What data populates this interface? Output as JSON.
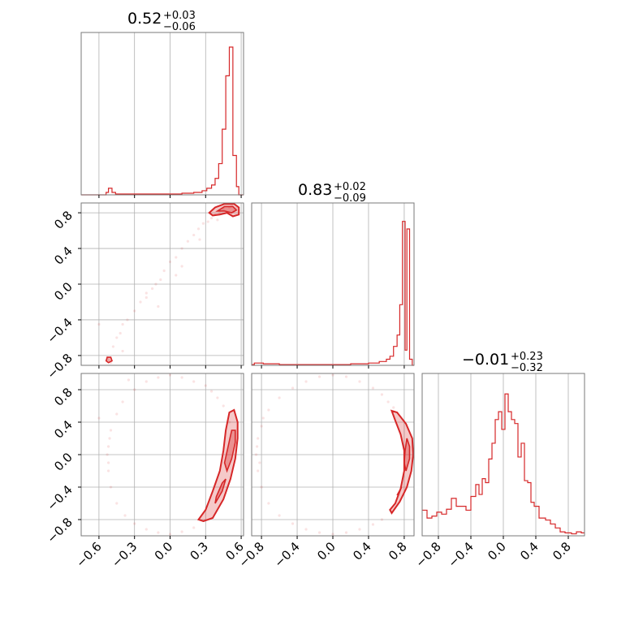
{
  "colors": {
    "accent": "#d62728",
    "frame": "#7a7a7a",
    "grid": "#b0b0b0"
  },
  "chart_data": {
    "type": "corner",
    "grid": true,
    "parameters": [
      {
        "title_main": "0.52",
        "title_sup": "+0.03",
        "title_sub": "−0.06",
        "range": [
          -0.75,
          0.62
        ],
        "ticks": [
          -0.6,
          -0.3,
          0.0,
          0.3,
          0.6
        ],
        "tick_labels": [
          "−0.6",
          "−0.3",
          "0.0",
          "0.3",
          "0.6"
        ]
      },
      {
        "title_main": "0.83",
        "title_sup": "+0.02",
        "title_sub": "−0.09",
        "range": [
          -0.91,
          0.91
        ],
        "ticks": [
          -0.8,
          -0.4,
          0.0,
          0.4,
          0.8
        ],
        "tick_labels": [
          "−0.8",
          "−0.4",
          "0.0",
          "0.4",
          "0.8"
        ]
      },
      {
        "title_main": "−0.01",
        "title_sup": "+0.23",
        "title_sub": "−0.32",
        "range": [
          -1.0,
          1.0
        ],
        "ticks": [
          -0.8,
          -0.4,
          0.0,
          0.4,
          0.8
        ],
        "tick_labels": [
          "−0.8",
          "−0.4",
          "0.0",
          "0.4",
          "0.8"
        ]
      }
    ],
    "histograms": [
      {
        "param": 0,
        "bins": [
          [
            -0.75,
            -0.54,
            0
          ],
          [
            -0.54,
            -0.52,
            3
          ],
          [
            -0.52,
            -0.49,
            8
          ],
          [
            -0.49,
            -0.46,
            3
          ],
          [
            -0.46,
            -0.3,
            1
          ],
          [
            -0.3,
            -0.1,
            1
          ],
          [
            -0.1,
            0.0,
            1
          ],
          [
            0.0,
            0.1,
            1
          ],
          [
            0.1,
            0.2,
            2
          ],
          [
            0.2,
            0.27,
            3
          ],
          [
            0.27,
            0.31,
            5
          ],
          [
            0.31,
            0.35,
            8
          ],
          [
            0.35,
            0.38,
            12
          ],
          [
            0.38,
            0.41,
            20
          ],
          [
            0.41,
            0.44,
            38
          ],
          [
            0.44,
            0.47,
            80
          ],
          [
            0.47,
            0.5,
            145
          ],
          [
            0.5,
            0.53,
            180
          ],
          [
            0.53,
            0.56,
            48
          ],
          [
            0.56,
            0.58,
            10
          ],
          [
            0.58,
            0.62,
            0
          ]
        ],
        "max": 180
      },
      {
        "param": 1,
        "bins": [
          [
            -0.91,
            -0.88,
            1
          ],
          [
            -0.88,
            -0.78,
            3
          ],
          [
            -0.78,
            -0.6,
            2
          ],
          [
            -0.6,
            -0.4,
            1
          ],
          [
            -0.4,
            -0.2,
            1
          ],
          [
            -0.2,
            0.0,
            1
          ],
          [
            0.0,
            0.2,
            1
          ],
          [
            0.2,
            0.4,
            2
          ],
          [
            0.4,
            0.52,
            3
          ],
          [
            0.52,
            0.6,
            5
          ],
          [
            0.6,
            0.64,
            8
          ],
          [
            0.64,
            0.68,
            12
          ],
          [
            0.68,
            0.72,
            25
          ],
          [
            0.72,
            0.75,
            40
          ],
          [
            0.75,
            0.78,
            80
          ],
          [
            0.78,
            0.81,
            190
          ],
          [
            0.81,
            0.83,
            20
          ],
          [
            0.83,
            0.86,
            180
          ],
          [
            0.86,
            0.89,
            8
          ],
          [
            0.89,
            0.91,
            0
          ]
        ],
        "max": 195
      },
      {
        "param": 2,
        "bins": [
          [
            -1.0,
            -0.94,
            26
          ],
          [
            -0.94,
            -0.88,
            18
          ],
          [
            -0.88,
            -0.82,
            20
          ],
          [
            -0.82,
            -0.76,
            24
          ],
          [
            -0.76,
            -0.7,
            22
          ],
          [
            -0.7,
            -0.64,
            27
          ],
          [
            -0.64,
            -0.58,
            38
          ],
          [
            -0.58,
            -0.52,
            30
          ],
          [
            -0.52,
            -0.46,
            30
          ],
          [
            -0.46,
            -0.4,
            26
          ],
          [
            -0.4,
            -0.34,
            40
          ],
          [
            -0.34,
            -0.3,
            52
          ],
          [
            -0.3,
            -0.26,
            42
          ],
          [
            -0.26,
            -0.22,
            58
          ],
          [
            -0.22,
            -0.18,
            54
          ],
          [
            -0.18,
            -0.14,
            78
          ],
          [
            -0.14,
            -0.1,
            94
          ],
          [
            -0.1,
            -0.06,
            118
          ],
          [
            -0.06,
            -0.02,
            126
          ],
          [
            -0.02,
            0.02,
            108
          ],
          [
            0.02,
            0.06,
            144
          ],
          [
            0.06,
            0.1,
            126
          ],
          [
            0.1,
            0.14,
            118
          ],
          [
            0.14,
            0.18,
            114
          ],
          [
            0.18,
            0.22,
            80
          ],
          [
            0.22,
            0.26,
            94
          ],
          [
            0.26,
            0.3,
            56
          ],
          [
            0.3,
            0.34,
            54
          ],
          [
            0.34,
            0.38,
            34
          ],
          [
            0.38,
            0.44,
            30
          ],
          [
            0.44,
            0.52,
            18
          ],
          [
            0.52,
            0.58,
            16
          ],
          [
            0.58,
            0.64,
            12
          ],
          [
            0.64,
            0.7,
            8
          ],
          [
            0.7,
            0.76,
            4
          ],
          [
            0.76,
            0.84,
            3
          ],
          [
            0.84,
            0.9,
            2
          ],
          [
            0.9,
            0.96,
            4
          ],
          [
            0.96,
            1.0,
            3
          ]
        ],
        "max": 150
      }
    ],
    "pairs": [
      {
        "x_param": 0,
        "y_param": 1,
        "scatter": [
          [
            -0.52,
            -0.85
          ],
          [
            -0.5,
            -0.88
          ],
          [
            -0.53,
            -0.82
          ],
          [
            -0.48,
            -0.7
          ],
          [
            -0.45,
            -0.6
          ],
          [
            -0.42,
            -0.55
          ],
          [
            -0.4,
            -0.45
          ],
          [
            -0.36,
            -0.4
          ],
          [
            -0.3,
            -0.3
          ],
          [
            -0.25,
            -0.2
          ],
          [
            -0.2,
            -0.1
          ],
          [
            -0.15,
            -0.05
          ],
          [
            -0.12,
            0.0
          ],
          [
            -0.08,
            0.05
          ],
          [
            -0.05,
            0.15
          ],
          [
            0.0,
            0.25
          ],
          [
            0.05,
            0.3
          ],
          [
            0.1,
            0.4
          ],
          [
            0.15,
            0.48
          ],
          [
            0.2,
            0.55
          ],
          [
            0.24,
            0.62
          ],
          [
            0.28,
            0.68
          ],
          [
            0.32,
            0.7
          ],
          [
            0.35,
            0.74
          ],
          [
            0.38,
            0.78
          ],
          [
            0.4,
            0.72
          ],
          [
            0.42,
            0.8
          ],
          [
            0.45,
            0.84
          ],
          [
            0.47,
            0.8
          ],
          [
            0.5,
            0.86
          ],
          [
            0.52,
            0.88
          ],
          [
            0.54,
            0.82
          ],
          [
            0.56,
            0.85
          ],
          [
            -0.6,
            -0.45
          ],
          [
            -0.4,
            -0.75
          ],
          [
            -0.2,
            -0.15
          ],
          [
            0.1,
            0.2
          ],
          [
            0.25,
            0.5
          ],
          [
            -0.1,
            -0.25
          ],
          [
            0.05,
            0.1
          ]
        ],
        "contours": [
          [
            [
              0.33,
              0.8
            ],
            [
              0.38,
              0.86
            ],
            [
              0.46,
              0.9
            ],
            [
              0.54,
              0.9
            ],
            [
              0.58,
              0.86
            ],
            [
              0.58,
              0.78
            ],
            [
              0.53,
              0.76
            ],
            [
              0.48,
              0.8
            ],
            [
              0.42,
              0.78
            ],
            [
              0.36,
              0.77
            ]
          ],
          [
            [
              0.4,
              0.82
            ],
            [
              0.46,
              0.87
            ],
            [
              0.53,
              0.87
            ],
            [
              0.56,
              0.83
            ],
            [
              0.52,
              0.8
            ],
            [
              0.46,
              0.82
            ]
          ],
          [
            [
              -0.53,
              -0.82
            ],
            [
              -0.5,
              -0.82
            ],
            [
              -0.49,
              -0.86
            ],
            [
              -0.52,
              -0.88
            ],
            [
              -0.54,
              -0.86
            ]
          ]
        ]
      },
      {
        "x_param": 0,
        "y_param": 2,
        "scatter": [
          [
            -0.52,
            0.1
          ],
          [
            -0.53,
            0.0
          ],
          [
            -0.52,
            -0.2
          ],
          [
            -0.5,
            -0.4
          ],
          [
            -0.45,
            -0.6
          ],
          [
            -0.38,
            -0.75
          ],
          [
            -0.3,
            -0.85
          ],
          [
            -0.2,
            -0.92
          ],
          [
            -0.1,
            -0.96
          ],
          [
            0.0,
            -0.98
          ],
          [
            0.1,
            -0.95
          ],
          [
            0.2,
            -0.9
          ],
          [
            -0.5,
            0.3
          ],
          [
            -0.45,
            0.5
          ],
          [
            -0.4,
            0.65
          ],
          [
            -0.3,
            0.8
          ],
          [
            -0.2,
            0.9
          ],
          [
            -0.1,
            0.95
          ],
          [
            0.0,
            0.98
          ],
          [
            0.1,
            0.95
          ],
          [
            0.2,
            0.9
          ],
          [
            0.3,
            0.85
          ],
          [
            0.35,
            0.78
          ],
          [
            0.4,
            0.7
          ],
          [
            -0.52,
            -0.1
          ],
          [
            -0.51,
            0.2
          ],
          [
            -0.6,
            0.45
          ],
          [
            -0.35,
            0.92
          ],
          [
            0.45,
            0.6
          ],
          [
            0.5,
            0.4
          ]
        ],
        "contours": [
          [
            [
              0.28,
              -0.82
            ],
            [
              0.36,
              -0.78
            ],
            [
              0.45,
              -0.55
            ],
            [
              0.51,
              -0.3
            ],
            [
              0.55,
              -0.05
            ],
            [
              0.57,
              0.2
            ],
            [
              0.57,
              0.4
            ],
            [
              0.54,
              0.55
            ],
            [
              0.5,
              0.52
            ],
            [
              0.47,
              0.3
            ],
            [
              0.45,
              0.05
            ],
            [
              0.42,
              -0.2
            ],
            [
              0.36,
              -0.45
            ],
            [
              0.3,
              -0.68
            ],
            [
              0.24,
              -0.8
            ]
          ],
          [
            [
              0.48,
              -0.2
            ],
            [
              0.52,
              -0.05
            ],
            [
              0.55,
              0.15
            ],
            [
              0.55,
              0.3
            ],
            [
              0.52,
              0.3
            ],
            [
              0.49,
              0.1
            ],
            [
              0.46,
              -0.1
            ]
          ],
          [
            [
              0.38,
              -0.6
            ],
            [
              0.44,
              -0.45
            ],
            [
              0.47,
              -0.3
            ],
            [
              0.44,
              -0.35
            ],
            [
              0.39,
              -0.52
            ]
          ]
        ]
      },
      {
        "x_param": 1,
        "y_param": 2,
        "scatter": [
          [
            -0.85,
            0.1
          ],
          [
            -0.86,
            0.0
          ],
          [
            -0.84,
            -0.2
          ],
          [
            -0.8,
            -0.4
          ],
          [
            -0.72,
            -0.6
          ],
          [
            -0.6,
            -0.75
          ],
          [
            -0.45,
            -0.85
          ],
          [
            -0.3,
            -0.92
          ],
          [
            -0.15,
            -0.96
          ],
          [
            0.0,
            -0.98
          ],
          [
            0.15,
            -0.96
          ],
          [
            0.3,
            -0.92
          ],
          [
            0.45,
            -0.86
          ],
          [
            0.55,
            -0.8
          ],
          [
            -0.8,
            0.35
          ],
          [
            -0.72,
            0.55
          ],
          [
            -0.6,
            0.7
          ],
          [
            -0.45,
            0.82
          ],
          [
            -0.3,
            0.9
          ],
          [
            -0.15,
            0.96
          ],
          [
            0.0,
            0.98
          ],
          [
            0.15,
            0.96
          ],
          [
            0.3,
            0.9
          ],
          [
            0.45,
            0.82
          ],
          [
            0.55,
            0.74
          ],
          [
            0.62,
            0.65
          ],
          [
            0.68,
            0.58
          ],
          [
            -0.84,
            0.2
          ],
          [
            -0.82,
            -0.1
          ],
          [
            -0.78,
            0.45
          ]
        ],
        "contours": [
          [
            [
              0.66,
              -0.72
            ],
            [
              0.75,
              -0.58
            ],
            [
              0.83,
              -0.4
            ],
            [
              0.88,
              -0.2
            ],
            [
              0.9,
              0.0
            ],
            [
              0.89,
              0.2
            ],
            [
              0.82,
              0.38
            ],
            [
              0.72,
              0.52
            ],
            [
              0.66,
              0.54
            ],
            [
              0.7,
              0.42
            ],
            [
              0.76,
              0.25
            ],
            [
              0.8,
              0.05
            ],
            [
              0.8,
              -0.2
            ],
            [
              0.76,
              -0.42
            ],
            [
              0.7,
              -0.6
            ],
            [
              0.64,
              -0.68
            ]
          ],
          [
            [
              0.82,
              -0.2
            ],
            [
              0.86,
              -0.05
            ],
            [
              0.86,
              0.1
            ],
            [
              0.83,
              0.2
            ],
            [
              0.81,
              0.05
            ],
            [
              0.8,
              -0.1
            ]
          ],
          [
            [
              0.72,
              -0.5
            ],
            [
              0.77,
              -0.4
            ],
            [
              0.75,
              -0.45
            ]
          ]
        ]
      }
    ]
  }
}
